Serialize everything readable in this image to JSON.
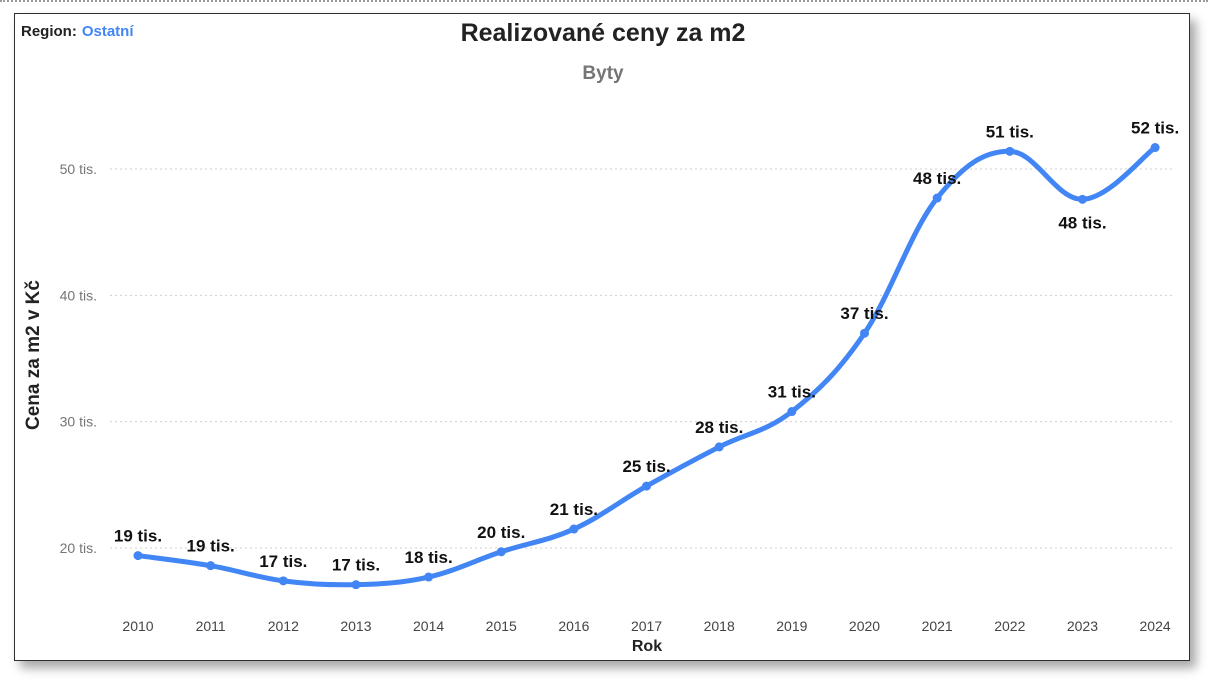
{
  "region": {
    "label": "Region:",
    "value": "Ostatní"
  },
  "colors": {
    "line": "#4285f4",
    "region_value": "#4285f4",
    "grid": "#cfcfcf"
  },
  "chart_data": {
    "type": "line",
    "title": "Realizované ceny za m2",
    "subtitle": "Byty",
    "xlabel": "Rok",
    "ylabel": "Cena za m2 v Kč",
    "x": [
      "2010",
      "2011",
      "2012",
      "2013",
      "2014",
      "2015",
      "2016",
      "2017",
      "2018",
      "2019",
      "2020",
      "2021",
      "2022",
      "2023",
      "2024"
    ],
    "series": [
      {
        "values": [
          19400,
          18600,
          17400,
          17100,
          17700,
          19700,
          21500,
          24900,
          28000,
          30800,
          37000,
          47700,
          51400,
          47600,
          51700
        ],
        "labels": [
          "19 tis.",
          "19 tis.",
          "17 tis.",
          "17 tis.",
          "18 tis.",
          "20 tis.",
          "21 tis.",
          "25 tis.",
          "28 tis.",
          "31 tis.",
          "37 tis.",
          "48 tis.",
          "51 tis.",
          "48 tis.",
          "52 tis."
        ]
      }
    ],
    "yticks": [
      20000,
      30000,
      40000,
      50000
    ],
    "ytick_labels": [
      "20 tis.",
      "30 tis.",
      "40 tis.",
      "50 tis."
    ],
    "ylim": [
      15000,
      56000
    ],
    "grid": true,
    "legend": "none"
  }
}
